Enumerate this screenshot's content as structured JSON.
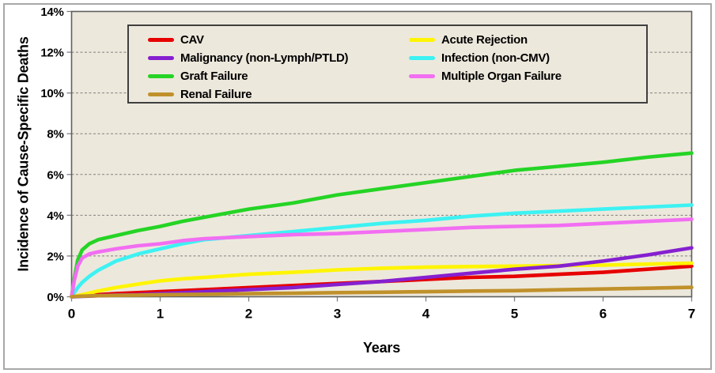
{
  "chart_data": {
    "type": "line",
    "title": "",
    "xlabel": "Years",
    "ylabel": "Incidence of Cause-Specific Deaths",
    "xlim": [
      0,
      7
    ],
    "ylim": [
      0,
      14
    ],
    "y_unit": "%",
    "grid": "horizontal-dashed",
    "legend_position": "top-inside-framed-2-columns",
    "xticks": [
      {
        "value": 0,
        "label": "0"
      },
      {
        "value": 1,
        "label": "1"
      },
      {
        "value": 2,
        "label": "2"
      },
      {
        "value": 3,
        "label": "3"
      },
      {
        "value": 4,
        "label": "4"
      },
      {
        "value": 5,
        "label": "5"
      },
      {
        "value": 6,
        "label": "6"
      },
      {
        "value": 7,
        "label": "7"
      }
    ],
    "yticks": [
      {
        "value": 0,
        "label": "0%"
      },
      {
        "value": 2,
        "label": "2%"
      },
      {
        "value": 4,
        "label": "4%"
      },
      {
        "value": 6,
        "label": "6%"
      },
      {
        "value": 8,
        "label": "8%"
      },
      {
        "value": 10,
        "label": "10%"
      },
      {
        "value": 12,
        "label": "12%"
      },
      {
        "value": 14,
        "label": "14%"
      }
    ],
    "x": [
      0,
      0.03,
      0.07,
      0.12,
      0.2,
      0.3,
      0.5,
      0.75,
      1,
      1.25,
      1.5,
      2,
      2.5,
      3,
      3.5,
      4,
      4.5,
      5,
      5.5,
      6,
      6.5,
      7
    ],
    "series": [
      {
        "name": "CAV",
        "color": "#E60000",
        "values": [
          0,
          0.02,
          0.04,
          0.06,
          0.08,
          0.1,
          0.15,
          0.2,
          0.25,
          0.3,
          0.35,
          0.45,
          0.55,
          0.65,
          0.75,
          0.85,
          0.95,
          1.0,
          1.1,
          1.2,
          1.35,
          1.5
        ]
      },
      {
        "name": "Acute Rejection",
        "color": "#FFF500",
        "values": [
          0,
          0.03,
          0.06,
          0.1,
          0.18,
          0.28,
          0.45,
          0.62,
          0.78,
          0.88,
          0.95,
          1.1,
          1.2,
          1.32,
          1.4,
          1.45,
          1.48,
          1.5,
          1.53,
          1.55,
          1.6,
          1.65
        ]
      },
      {
        "name": "Malignancy (non-Lymph/PTLD)",
        "color": "#8520D0",
        "values": [
          0,
          0.0,
          0.01,
          0.02,
          0.03,
          0.05,
          0.08,
          0.1,
          0.15,
          0.2,
          0.25,
          0.35,
          0.45,
          0.6,
          0.75,
          0.95,
          1.15,
          1.35,
          1.5,
          1.75,
          2.05,
          2.4
        ]
      },
      {
        "name": "Infection (non-CMV)",
        "color": "#3DF2F2",
        "values": [
          0,
          0.2,
          0.45,
          0.7,
          1.0,
          1.3,
          1.75,
          2.1,
          2.35,
          2.6,
          2.8,
          3.0,
          3.2,
          3.4,
          3.6,
          3.75,
          3.95,
          4.1,
          4.2,
          4.3,
          4.4,
          4.5
        ]
      },
      {
        "name": "Graft Failure",
        "color": "#25D425",
        "values": [
          0,
          0.9,
          1.8,
          2.3,
          2.6,
          2.8,
          3.0,
          3.25,
          3.45,
          3.7,
          3.9,
          4.3,
          4.6,
          5.0,
          5.3,
          5.6,
          5.9,
          6.2,
          6.4,
          6.6,
          6.85,
          7.05
        ]
      },
      {
        "name": "Multiple Organ Failure",
        "color": "#F26EF2",
        "values": [
          0,
          0.8,
          1.5,
          1.9,
          2.1,
          2.2,
          2.35,
          2.5,
          2.6,
          2.75,
          2.85,
          2.95,
          3.05,
          3.1,
          3.2,
          3.3,
          3.4,
          3.45,
          3.5,
          3.6,
          3.7,
          3.8
        ]
      },
      {
        "name": "Renal Failure",
        "color": "#C0912B",
        "values": [
          0,
          0.01,
          0.02,
          0.03,
          0.04,
          0.05,
          0.07,
          0.08,
          0.1,
          0.11,
          0.12,
          0.15,
          0.17,
          0.2,
          0.22,
          0.25,
          0.28,
          0.3,
          0.34,
          0.38,
          0.42,
          0.46
        ]
      }
    ]
  },
  "colors": {
    "background": "#FFFFFF",
    "plot_background": "#EDE8DC",
    "plot_border": "#606060",
    "gridline": "#7F7F7F",
    "tick": "#808080",
    "outer_border": "#A8A8A8",
    "legend_border": "#3F3F3F",
    "text": "#000000"
  }
}
